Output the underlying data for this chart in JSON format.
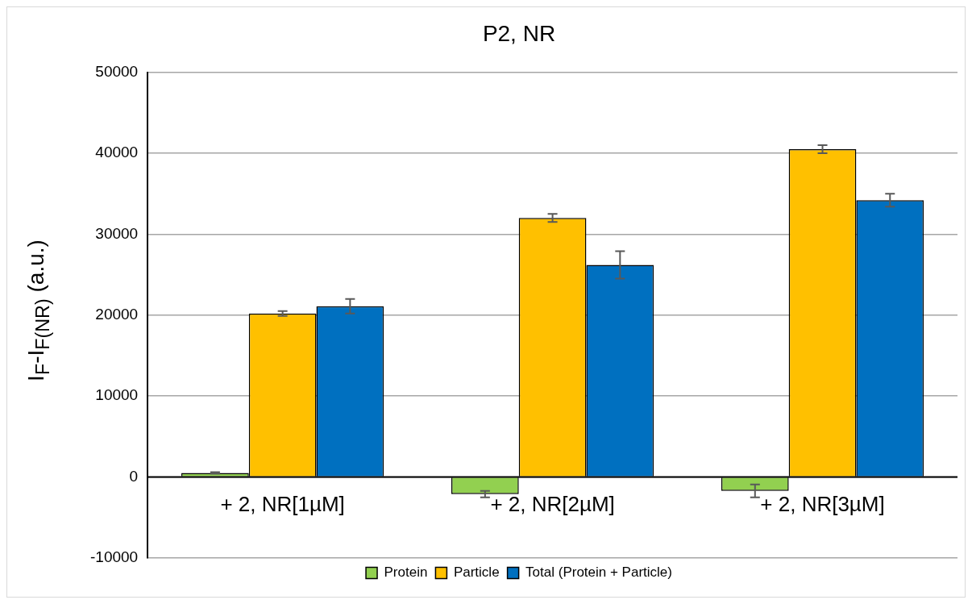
{
  "chart_data": {
    "type": "bar",
    "title": "P2, NR",
    "ylabel": "I$_{F}$-I$_{F(NR)}$ (a.u.)",
    "categories": [
      "+ 2, NR[1µM]",
      "+ 2, NR[2µM]",
      "+ 2, NR[3µM]"
    ],
    "series": [
      {
        "name": "Protein",
        "color": "#92d050",
        "values": [
          500,
          -2100,
          -1700
        ],
        "errors": [
          100,
          400,
          800
        ]
      },
      {
        "name": "Particle",
        "color": "#ffc000",
        "values": [
          20200,
          32000,
          40500
        ],
        "errors": [
          300,
          500,
          500
        ]
      },
      {
        "name": "Total (Protein + Particle)",
        "color": "#0070c0",
        "values": [
          21100,
          26200,
          34200
        ],
        "errors": [
          900,
          1700,
          800
        ]
      }
    ],
    "ylim": [
      -10000,
      50000
    ],
    "yticks": [
      -10000,
      0,
      10000,
      20000,
      30000,
      40000,
      50000
    ],
    "grid": "y",
    "legend": "bottom"
  }
}
